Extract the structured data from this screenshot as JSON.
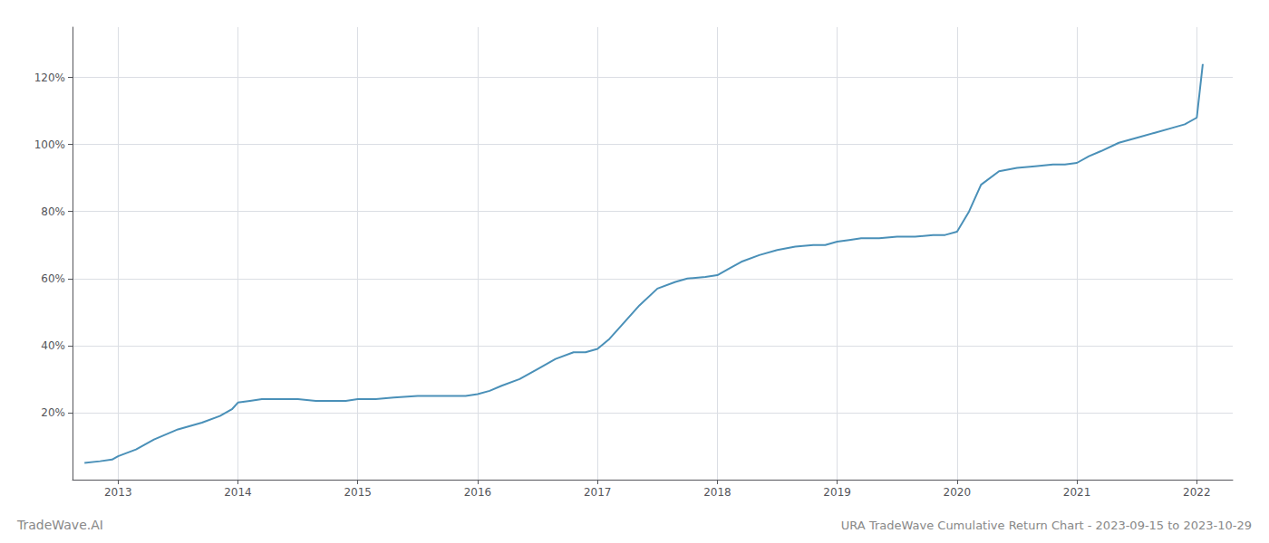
{
  "chart_data": {
    "type": "line",
    "title": "URA TradeWave Cumulative Return Chart - 2023-09-15 to 2023-10-29",
    "annotations": [
      "TradeWave.AI"
    ],
    "x": [
      2012.72,
      2012.85,
      2012.95,
      2013.0,
      2013.15,
      2013.3,
      2013.5,
      2013.7,
      2013.85,
      2013.95,
      2014.0,
      2014.1,
      2014.2,
      2014.35,
      2014.5,
      2014.65,
      2014.8,
      2014.9,
      2015.0,
      2015.15,
      2015.3,
      2015.5,
      2015.65,
      2015.8,
      2015.9,
      2016.0,
      2016.1,
      2016.2,
      2016.35,
      2016.5,
      2016.65,
      2016.8,
      2016.9,
      2017.0,
      2017.1,
      2017.2,
      2017.35,
      2017.5,
      2017.65,
      2017.75,
      2017.9,
      2018.0,
      2018.1,
      2018.2,
      2018.35,
      2018.5,
      2018.65,
      2018.8,
      2018.9,
      2019.0,
      2019.1,
      2019.2,
      2019.35,
      2019.5,
      2019.65,
      2019.8,
      2019.9,
      2020.0,
      2020.1,
      2020.2,
      2020.35,
      2020.5,
      2020.65,
      2020.8,
      2020.9,
      2021.0,
      2021.1,
      2021.2,
      2021.35,
      2021.5,
      2021.65,
      2021.8,
      2021.9,
      2022.0,
      2022.05
    ],
    "values": [
      5,
      5.5,
      6,
      7,
      9,
      12,
      15,
      17,
      19,
      21,
      23,
      23.5,
      24,
      24,
      24,
      23.5,
      23.5,
      23.5,
      24,
      24,
      24.5,
      25,
      25,
      25,
      25,
      25.5,
      26.5,
      28,
      30,
      33,
      36,
      38,
      38,
      39,
      42,
      46,
      52,
      57,
      59,
      60,
      60.5,
      61,
      63,
      65,
      67,
      68.5,
      69.5,
      70,
      70,
      71,
      71.5,
      72,
      72,
      72.5,
      72.5,
      73,
      73,
      74,
      80,
      88,
      92,
      93,
      93.5,
      94,
      94,
      94.5,
      96.5,
      98,
      100.5,
      102,
      103.5,
      105,
      106,
      108,
      124
    ],
    "color": "#4a90b8",
    "xlim": [
      2012.62,
      2022.3
    ],
    "xticks": [
      2013,
      2014,
      2015,
      2016,
      2017,
      2018,
      2019,
      2020,
      2021,
      2022
    ],
    "ylim": [
      0,
      135
    ],
    "yticks": [
      {
        "value": 20,
        "label": "20%"
      },
      {
        "value": 40,
        "label": "40%"
      },
      {
        "value": 60,
        "label": "60%"
      },
      {
        "value": 80,
        "label": "80%"
      },
      {
        "value": 100,
        "label": "100%"
      },
      {
        "value": 120,
        "label": "120%"
      }
    ],
    "grid": true
  }
}
